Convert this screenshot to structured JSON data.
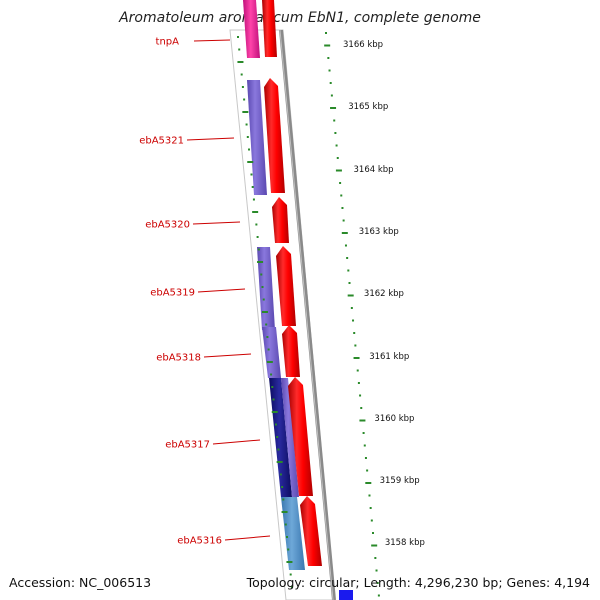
{
  "header": {
    "title": "Aromatoleum aromaticum EbN1, complete genome"
  },
  "footer": {
    "accession": "Accession: NC_006513",
    "topology": "Topology: circular; Length: 4,296,230 bp; Genes: 4,194"
  },
  "ticks": [
    "3166 kbp",
    "3165 kbp",
    "3164 kbp",
    "3163 kbp",
    "3162 kbp",
    "3161 kbp",
    "3160 kbp",
    "3159 kbp",
    "3158 kbp"
  ],
  "genes": [
    "tnpA",
    "ebA5321",
    "ebA5320",
    "ebA5319",
    "ebA5318",
    "ebA5317",
    "ebA5316"
  ],
  "colors": {
    "forward_cds": "#ff0000",
    "feature_magenta": "#ee2299",
    "feature_purple": "#7a66cc",
    "feature_navy": "#1a1a88",
    "feature_steel": "#4a88c0",
    "backbone": "#888888",
    "gc_skew_green": "#2a8a2a",
    "label_red": "#cc0000"
  }
}
